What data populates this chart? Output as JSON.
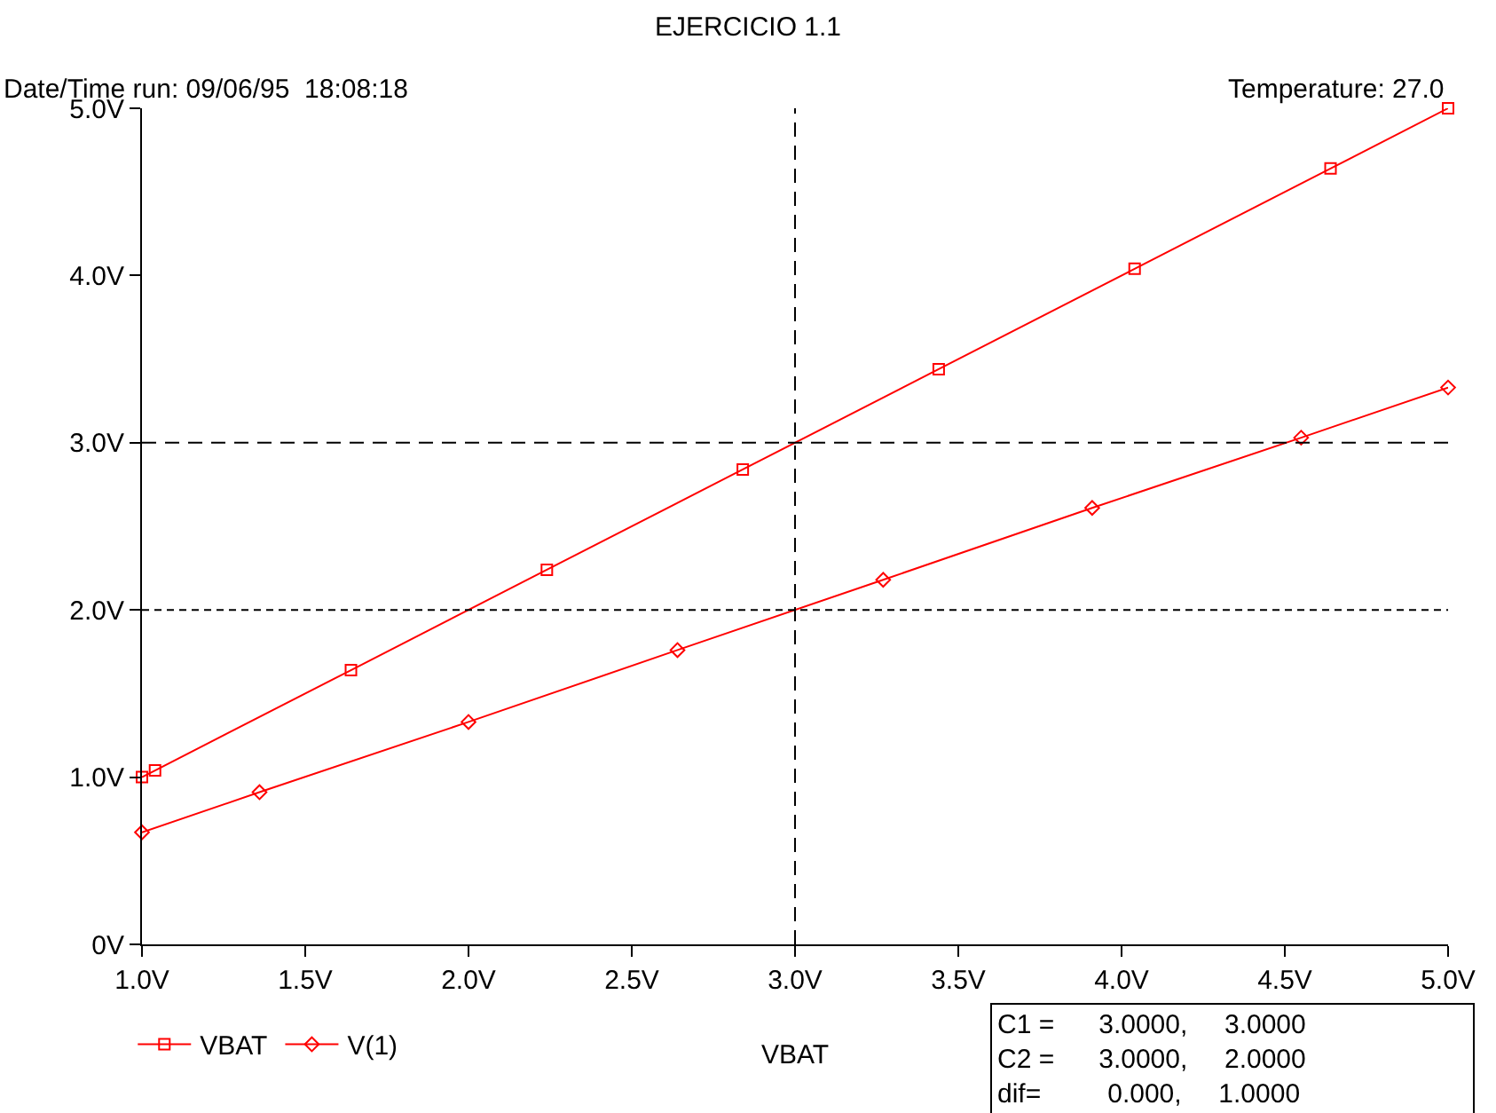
{
  "chart_data": {
    "type": "line",
    "title": "EJERCICIO 1.1",
    "xlabel": "VBAT",
    "annotations": [
      "Date/Time run: 09/06/95  18:08:18",
      "Temperature: 27.0",
      "C1 =      3.0000,     3.0000\nC2 =      3.0000,     2.0000\ndif=         0.000,     1.0000"
    ],
    "series": [
      {
        "name": "VBAT",
        "color": "#ff0000",
        "marker": "square",
        "x": [
          1.0,
          1.04,
          1.64,
          2.24,
          2.84,
          3.44,
          4.04,
          4.64,
          5.0
        ],
        "values": [
          1.0,
          1.04,
          1.64,
          2.24,
          2.84,
          3.44,
          4.04,
          4.64,
          5.0
        ]
      },
      {
        "name": "V(1)",
        "color": "#ff0000",
        "marker": "diamond",
        "x": [
          1.0,
          1.36,
          2.0,
          2.64,
          3.27,
          3.91,
          4.55,
          5.0
        ],
        "values": [
          0.67,
          0.91,
          1.33,
          1.76,
          2.18,
          2.61,
          3.03,
          3.33
        ]
      }
    ],
    "xlim": [
      1.0,
      5.0
    ],
    "ylim": [
      0,
      5.0
    ],
    "xticks": [
      {
        "value": 1.0,
        "label": "1.0V"
      },
      {
        "value": 1.5,
        "label": "1.5V"
      },
      {
        "value": 2.0,
        "label": "2.0V"
      },
      {
        "value": 2.5,
        "label": "2.5V"
      },
      {
        "value": 3.0,
        "label": "3.0V"
      },
      {
        "value": 3.5,
        "label": "3.5V"
      },
      {
        "value": 4.0,
        "label": "4.0V"
      },
      {
        "value": 4.5,
        "label": "4.5V"
      },
      {
        "value": 5.0,
        "label": "5.0V"
      }
    ],
    "yticks": [
      {
        "value": 0,
        "label": "0V"
      },
      {
        "value": 1.0,
        "label": "1.0V"
      },
      {
        "value": 2.0,
        "label": "2.0V"
      },
      {
        "value": 3.0,
        "label": "3.0V"
      },
      {
        "value": 4.0,
        "label": "4.0V"
      },
      {
        "value": 5.0,
        "label": "5.0V"
      }
    ],
    "ref_lines": [
      {
        "axis": "x",
        "value": 3.0,
        "color": "#000000",
        "line_style": "dashed"
      },
      {
        "axis": "y",
        "value": 3.0,
        "color": "#000000",
        "line_style": "dashed"
      },
      {
        "axis": "y",
        "value": 2.0,
        "color": "#000000",
        "line_style": "dotted"
      }
    ],
    "legend": "bottom left",
    "line_style": "solid"
  }
}
